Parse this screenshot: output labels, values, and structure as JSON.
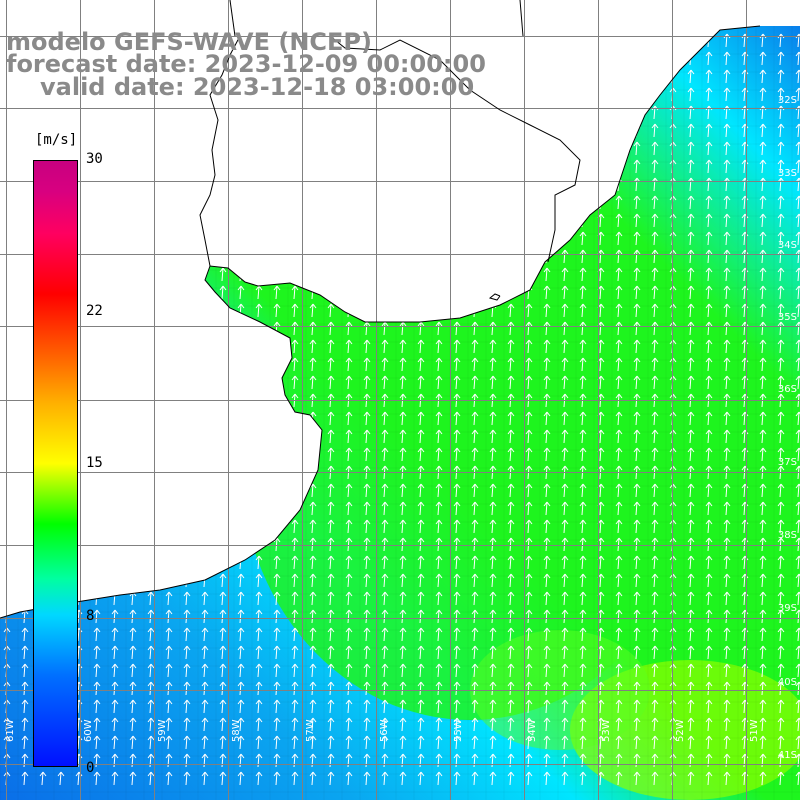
{
  "title": {
    "line1": "modelo GEFS-WAVE (NCEP)",
    "line2": "forecast date: 2023-12-09 00:00:00",
    "line3": "valid date: 2023-12-18 03:00:00"
  },
  "colorbar": {
    "unit": "[m/s]",
    "labels": [
      "30",
      "22",
      "15",
      "8",
      "0"
    ],
    "min": 0,
    "max": 30
  },
  "axes": {
    "lon_labels": [
      "61W",
      "60W",
      "59W",
      "58W",
      "57W",
      "56W",
      "55W",
      "54W",
      "53W",
      "52W",
      "51W"
    ],
    "lat_labels": [
      "32S",
      "33S",
      "34S",
      "35S",
      "36S",
      "37S",
      "38S",
      "39S",
      "40S",
      "41S"
    ]
  },
  "field": {
    "variable": "wind speed",
    "units": "m/s",
    "direction": "northward",
    "colors": {
      "ocean_blue": "#0a6ee8",
      "ocean_cyan": "#00e6ff",
      "ocean_green": "#1ef51e",
      "ocean_yellowgreen": "#8cff00"
    }
  }
}
